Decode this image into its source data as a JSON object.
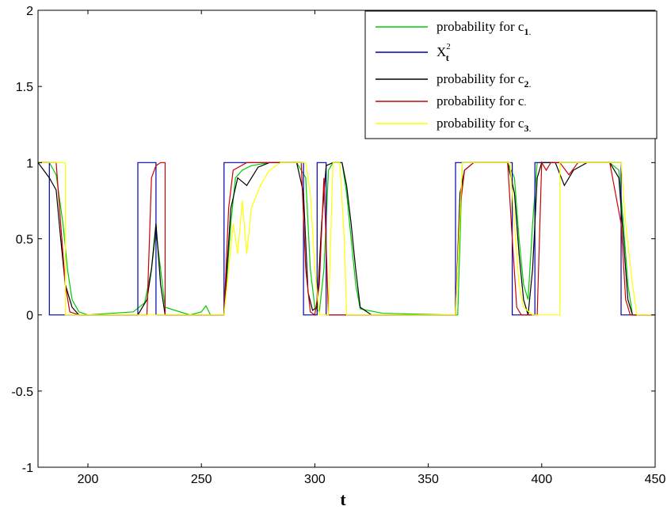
{
  "chart_data": {
    "type": "line",
    "title": "",
    "xlabel": "t",
    "ylabel": "",
    "xlim": [
      178,
      450
    ],
    "ylim": [
      -1,
      2
    ],
    "xticks": [
      "200",
      "250",
      "300",
      "350",
      "400",
      "450"
    ],
    "yticks": [
      "2",
      "1.5",
      "1",
      "0.5",
      "0",
      "-0.5",
      "-1"
    ],
    "grid": false,
    "legend_position": "top-right",
    "series": [
      {
        "key": "c1",
        "color": "#00cc00",
        "legend": {
          "text": "probability for c",
          "sub": "1",
          "suffix": "."
        },
        "points": [
          [
            178,
            1
          ],
          [
            183,
            1
          ],
          [
            186,
            0.92
          ],
          [
            189,
            0.6
          ],
          [
            191,
            0.3
          ],
          [
            193,
            0.1
          ],
          [
            196,
            0.02
          ],
          [
            200,
            0
          ],
          [
            210,
            0.01
          ],
          [
            220,
            0.02
          ],
          [
            225,
            0.08
          ],
          [
            228,
            0.3
          ],
          [
            230,
            0.55
          ],
          [
            232,
            0.3
          ],
          [
            234,
            0.05
          ],
          [
            245,
            0
          ],
          [
            250,
            0.02
          ],
          [
            252,
            0.06
          ],
          [
            254,
            0
          ],
          [
            260,
            0
          ],
          [
            263,
            0.6
          ],
          [
            265,
            0.9
          ],
          [
            268,
            0.95
          ],
          [
            272,
            0.98
          ],
          [
            280,
            1
          ],
          [
            292,
            1
          ],
          [
            296,
            0.9
          ],
          [
            298,
            0.3
          ],
          [
            300,
            0.05
          ],
          [
            302,
            0.02
          ],
          [
            304,
            0.3
          ],
          [
            306,
            0.95
          ],
          [
            308,
            1
          ],
          [
            312,
            1
          ],
          [
            314,
            0.8
          ],
          [
            316,
            0.5
          ],
          [
            318,
            0.2
          ],
          [
            320,
            0.04
          ],
          [
            330,
            0.01
          ],
          [
            360,
            0
          ],
          [
            363,
            0
          ],
          [
            365,
            1
          ],
          [
            370,
            1
          ],
          [
            375,
            1
          ],
          [
            385,
            1
          ],
          [
            388,
            0.9
          ],
          [
            390,
            0.5
          ],
          [
            392,
            0.2
          ],
          [
            394,
            0.1
          ],
          [
            396,
            0.6
          ],
          [
            398,
            1
          ],
          [
            405,
            1
          ],
          [
            410,
            1
          ],
          [
            430,
            1
          ],
          [
            434,
            0.95
          ],
          [
            436,
            0.6
          ],
          [
            438,
            0.2
          ],
          [
            440,
            0
          ],
          [
            450,
            0
          ]
        ]
      },
      {
        "key": "x2",
        "color": "#0000aa",
        "legend": {
          "text": "X",
          "sub": "t",
          "sup": "2"
        },
        "points": [
          [
            178,
            1
          ],
          [
            183,
            1
          ],
          [
            183,
            0
          ],
          [
            222,
            0
          ],
          [
            222,
            1
          ],
          [
            230,
            1
          ],
          [
            230,
            0
          ],
          [
            260,
            0
          ],
          [
            260,
            1
          ],
          [
            295,
            1
          ],
          [
            295,
            0
          ],
          [
            301,
            0
          ],
          [
            301,
            1
          ],
          [
            305,
            1
          ],
          [
            305,
            0
          ],
          [
            362,
            0
          ],
          [
            362,
            1
          ],
          [
            387,
            1
          ],
          [
            387,
            0
          ],
          [
            397,
            0
          ],
          [
            397,
            1
          ],
          [
            435,
            1
          ],
          [
            435,
            0
          ],
          [
            450,
            0
          ]
        ]
      },
      {
        "key": "c2",
        "color": "#000000",
        "legend": {
          "text": "probability for c",
          "sub": "2",
          "suffix": "."
        },
        "points": [
          [
            178,
            1
          ],
          [
            180,
            0.96
          ],
          [
            183,
            0.9
          ],
          [
            186,
            0.82
          ],
          [
            188,
            0.5
          ],
          [
            190,
            0.2
          ],
          [
            193,
            0.05
          ],
          [
            196,
            0
          ],
          [
            210,
            0
          ],
          [
            222,
            0
          ],
          [
            226,
            0.1
          ],
          [
            228,
            0.3
          ],
          [
            230,
            0.6
          ],
          [
            232,
            0.2
          ],
          [
            234,
            0
          ],
          [
            260,
            0
          ],
          [
            263,
            0.7
          ],
          [
            266,
            0.9
          ],
          [
            270,
            0.85
          ],
          [
            275,
            0.97
          ],
          [
            280,
            1
          ],
          [
            292,
            1
          ],
          [
            295,
            0.8
          ],
          [
            297,
            0.15
          ],
          [
            299,
            0.03
          ],
          [
            301,
            0.05
          ],
          [
            303,
            0.6
          ],
          [
            305,
            0.98
          ],
          [
            308,
            1
          ],
          [
            312,
            1
          ],
          [
            314,
            0.85
          ],
          [
            316,
            0.6
          ],
          [
            318,
            0.3
          ],
          [
            320,
            0.05
          ],
          [
            325,
            0
          ],
          [
            360,
            0
          ],
          [
            362,
            0
          ],
          [
            364,
            0.8
          ],
          [
            366,
            0.95
          ],
          [
            370,
            1
          ],
          [
            385,
            1
          ],
          [
            388,
            0.8
          ],
          [
            390,
            0.4
          ],
          [
            392,
            0.1
          ],
          [
            394,
            0
          ],
          [
            396,
            0.3
          ],
          [
            398,
            0.9
          ],
          [
            400,
            1
          ],
          [
            406,
            1
          ],
          [
            410,
            0.85
          ],
          [
            414,
            0.95
          ],
          [
            420,
            1
          ],
          [
            430,
            1
          ],
          [
            434,
            0.9
          ],
          [
            436,
            0.5
          ],
          [
            438,
            0.1
          ],
          [
            440,
            0
          ],
          [
            450,
            0
          ]
        ]
      },
      {
        "key": "c",
        "color": "#cc0000",
        "legend": {
          "text": "probability for c",
          "sub": "",
          "suffix": "."
        },
        "points": [
          [
            178,
            1
          ],
          [
            186,
            1
          ],
          [
            188,
            0.6
          ],
          [
            190,
            0.2
          ],
          [
            192,
            0.02
          ],
          [
            196,
            0
          ],
          [
            226,
            0
          ],
          [
            228,
            0.9
          ],
          [
            230,
            0.98
          ],
          [
            232,
            1
          ],
          [
            234,
            1
          ],
          [
            234,
            0
          ],
          [
            260,
            0
          ],
          [
            262,
            0.7
          ],
          [
            264,
            0.95
          ],
          [
            270,
            1
          ],
          [
            290,
            1
          ],
          [
            294,
            1
          ],
          [
            296,
            0.3
          ],
          [
            298,
            0.02
          ],
          [
            300,
            0
          ],
          [
            302,
            0.2
          ],
          [
            304,
            0.9
          ],
          [
            306,
            0
          ],
          [
            310,
            0
          ],
          [
            362,
            0
          ],
          [
            364,
            0.7
          ],
          [
            366,
            0.95
          ],
          [
            370,
            1
          ],
          [
            385,
            1
          ],
          [
            387,
            0.5
          ],
          [
            389,
            0.05
          ],
          [
            391,
            0
          ],
          [
            398,
            0
          ],
          [
            400,
            1
          ],
          [
            402,
            0.95
          ],
          [
            404,
            1
          ],
          [
            408,
            1
          ],
          [
            412,
            0.92
          ],
          [
            416,
            1
          ],
          [
            430,
            1
          ],
          [
            435,
            0.6
          ],
          [
            437,
            0.1
          ],
          [
            439,
            0
          ],
          [
            450,
            0
          ]
        ]
      },
      {
        "key": "c3",
        "color": "#ffff00",
        "legend": {
          "text": "probability for c",
          "sub": "3",
          "suffix": "."
        },
        "points": [
          [
            178,
            1
          ],
          [
            185,
            1
          ],
          [
            190,
            1
          ],
          [
            190,
            0
          ],
          [
            260,
            0
          ],
          [
            262,
            0.3
          ],
          [
            264,
            0.6
          ],
          [
            266,
            0.4
          ],
          [
            268,
            0.75
          ],
          [
            270,
            0.4
          ],
          [
            272,
            0.7
          ],
          [
            276,
            0.85
          ],
          [
            280,
            0.95
          ],
          [
            285,
            1
          ],
          [
            296,
            1
          ],
          [
            298,
            0.8
          ],
          [
            300,
            0.3
          ],
          [
            302,
            0
          ],
          [
            306,
            0
          ],
          [
            308,
            1
          ],
          [
            311,
            1
          ],
          [
            313,
            0.5
          ],
          [
            314,
            0
          ],
          [
            362,
            0
          ],
          [
            365,
            1
          ],
          [
            370,
            1
          ],
          [
            386,
            1
          ],
          [
            388,
            0.6
          ],
          [
            390,
            0.2
          ],
          [
            392,
            0.05
          ],
          [
            396,
            0
          ],
          [
            408,
            0
          ],
          [
            408,
            1
          ],
          [
            430,
            1
          ],
          [
            435,
            1
          ],
          [
            437,
            0.6
          ],
          [
            440,
            0.2
          ],
          [
            442,
            0
          ],
          [
            450,
            0
          ]
        ]
      }
    ]
  }
}
